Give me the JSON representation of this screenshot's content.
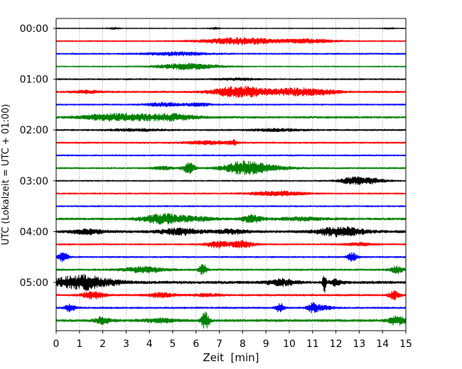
{
  "chart_data": {
    "type": "line",
    "subtype": "helicorder",
    "xlabel": "Zeit  [min]",
    "ylabel": "UTC (Lokalzeit = UTC + 01:00)",
    "xlim": [
      0,
      15
    ],
    "x_ticks": [
      "0",
      "1",
      "2",
      "3",
      "4",
      "5",
      "6",
      "7",
      "8",
      "9",
      "10",
      "11",
      "12",
      "13",
      "14",
      "15"
    ],
    "y_tick_labels": [
      "00:00",
      "01:00",
      "02:00",
      "03:00",
      "04:00",
      "05:00"
    ],
    "row_interval_min": 15,
    "trace_colors": [
      "#000000",
      "#ff0000",
      "#0000ff",
      "#008000"
    ],
    "grid": "vertical dotted lines at each minute",
    "rows": [
      {
        "time": "00:00",
        "color": "#000000",
        "noise": 0.5,
        "bursts": [
          [
            2.5,
            0.15,
            1.2
          ],
          [
            6.8,
            0.15,
            1.4
          ],
          [
            14.3,
            0.15,
            1.0
          ]
        ]
      },
      {
        "time": "00:15",
        "color": "#ff0000",
        "noise": 0.8,
        "bursts": [
          [
            7.9,
            1.1,
            4.5
          ],
          [
            10.8,
            0.8,
            2.5
          ]
        ]
      },
      {
        "time": "00:30",
        "color": "#0000ff",
        "noise": 0.9,
        "bursts": [
          [
            5.2,
            0.9,
            2.2
          ]
        ]
      },
      {
        "time": "00:45",
        "color": "#008000",
        "noise": 0.7,
        "bursts": [
          [
            5.7,
            0.9,
            4.0
          ]
        ]
      },
      {
        "time": "01:00",
        "color": "#000000",
        "noise": 0.9,
        "bursts": [
          [
            7.8,
            0.6,
            1.2
          ]
        ]
      },
      {
        "time": "01:15",
        "color": "#ff0000",
        "noise": 1.2,
        "bursts": [
          [
            7.4,
            0.6,
            4.6
          ],
          [
            8.3,
            0.6,
            5.0
          ],
          [
            10.6,
            0.6,
            4.6
          ],
          [
            9.6,
            0.5,
            2.2
          ],
          [
            11.7,
            0.4,
            2.0
          ],
          [
            1.3,
            0.4,
            1.6
          ]
        ]
      },
      {
        "time": "01:30",
        "color": "#0000ff",
        "noise": 0.9,
        "bursts": [
          [
            4.6,
            0.5,
            2.5
          ],
          [
            6.1,
            0.4,
            2.0
          ]
        ]
      },
      {
        "time": "01:45",
        "color": "#008000",
        "noise": 1.3,
        "bursts": [
          [
            2.2,
            0.8,
            3.8
          ],
          [
            4.9,
            0.8,
            4.2
          ],
          [
            3.4,
            0.6,
            2.2
          ]
        ]
      },
      {
        "time": "02:00",
        "color": "#000000",
        "noise": 1.0,
        "bursts": [
          [
            3.5,
            0.8,
            1.4
          ],
          [
            9.5,
            0.8,
            1.6
          ]
        ]
      },
      {
        "time": "02:15",
        "color": "#ff0000",
        "noise": 1.0,
        "bursts": [
          [
            6.6,
            0.7,
            2.2
          ],
          [
            7.6,
            0.1,
            3.5
          ]
        ]
      },
      {
        "time": "02:30",
        "color": "#0000ff",
        "noise": 0.9,
        "bursts": []
      },
      {
        "time": "02:45",
        "color": "#008000",
        "noise": 1.0,
        "bursts": [
          [
            5.7,
            0.18,
            7.5
          ],
          [
            8.0,
            0.6,
            8.0
          ],
          [
            9.0,
            0.8,
            3.0
          ],
          [
            4.6,
            0.3,
            2.2
          ]
        ]
      },
      {
        "time": "03:00",
        "color": "#000000",
        "noise": 0.8,
        "bursts": [
          [
            13.2,
            0.6,
            4.5
          ],
          [
            12.6,
            0.3,
            1.8
          ]
        ]
      },
      {
        "time": "03:15",
        "color": "#ff0000",
        "noise": 0.9,
        "bursts": [
          [
            9.5,
            0.8,
            3.2
          ]
        ]
      },
      {
        "time": "03:30",
        "color": "#0000ff",
        "noise": 0.9,
        "bursts": []
      },
      {
        "time": "03:45",
        "color": "#008000",
        "noise": 1.4,
        "bursts": [
          [
            4.6,
            0.6,
            6.5
          ],
          [
            8.4,
            0.3,
            5.0
          ],
          [
            6.0,
            0.6,
            2.6
          ],
          [
            10.5,
            0.8,
            1.8
          ]
        ]
      },
      {
        "time": "04:00",
        "color": "#000000",
        "noise": 1.6,
        "bursts": [
          [
            12.2,
            0.7,
            6.2
          ],
          [
            5.3,
            0.6,
            4.2
          ],
          [
            1.4,
            0.5,
            3.2
          ],
          [
            7.5,
            0.5,
            2.5
          ]
        ]
      },
      {
        "time": "04:15",
        "color": "#ff0000",
        "noise": 1.0,
        "bursts": [
          [
            6.9,
            0.35,
            4.6
          ],
          [
            8.0,
            0.35,
            4.6
          ],
          [
            13.0,
            0.4,
            2.2
          ]
        ]
      },
      {
        "time": "04:30",
        "color": "#0000ff",
        "noise": 1.0,
        "bursts": [
          [
            0.3,
            0.15,
            6.2
          ],
          [
            12.7,
            0.15,
            5.6
          ]
        ]
      },
      {
        "time": "04:45",
        "color": "#008000",
        "noise": 1.2,
        "bursts": [
          [
            3.8,
            0.6,
            4.0
          ],
          [
            6.3,
            0.12,
            7.5
          ],
          [
            14.6,
            0.2,
            4.6
          ]
        ]
      },
      {
        "time": "05:00",
        "color": "#000000",
        "noise": 1.8,
        "bursts": [
          [
            1.3,
            0.5,
            9.0
          ],
          [
            0.4,
            0.4,
            5.0
          ],
          [
            2.4,
            0.4,
            3.0
          ],
          [
            9.7,
            0.4,
            4.2
          ],
          [
            11.5,
            0.05,
            14.0
          ],
          [
            12.0,
            0.2,
            4.0
          ]
        ]
      },
      {
        "time": "05:15",
        "color": "#ff0000",
        "noise": 1.2,
        "bursts": [
          [
            1.6,
            0.35,
            5.0
          ],
          [
            4.5,
            0.4,
            3.2
          ],
          [
            14.5,
            0.15,
            6.5
          ],
          [
            6.5,
            0.4,
            2.0
          ]
        ]
      },
      {
        "time": "05:30",
        "color": "#0000ff",
        "noise": 1.1,
        "bursts": [
          [
            0.6,
            0.15,
            5.2
          ],
          [
            9.6,
            0.12,
            6.2
          ],
          [
            11.0,
            0.15,
            6.2
          ],
          [
            11.4,
            0.3,
            3.0
          ]
        ]
      },
      {
        "time": "05:45",
        "color": "#008000",
        "noise": 1.6,
        "bursts": [
          [
            2.0,
            0.25,
            4.6
          ],
          [
            6.4,
            0.12,
            11.0
          ],
          [
            14.6,
            0.25,
            6.0
          ],
          [
            4.5,
            0.5,
            2.5
          ]
        ]
      }
    ]
  }
}
